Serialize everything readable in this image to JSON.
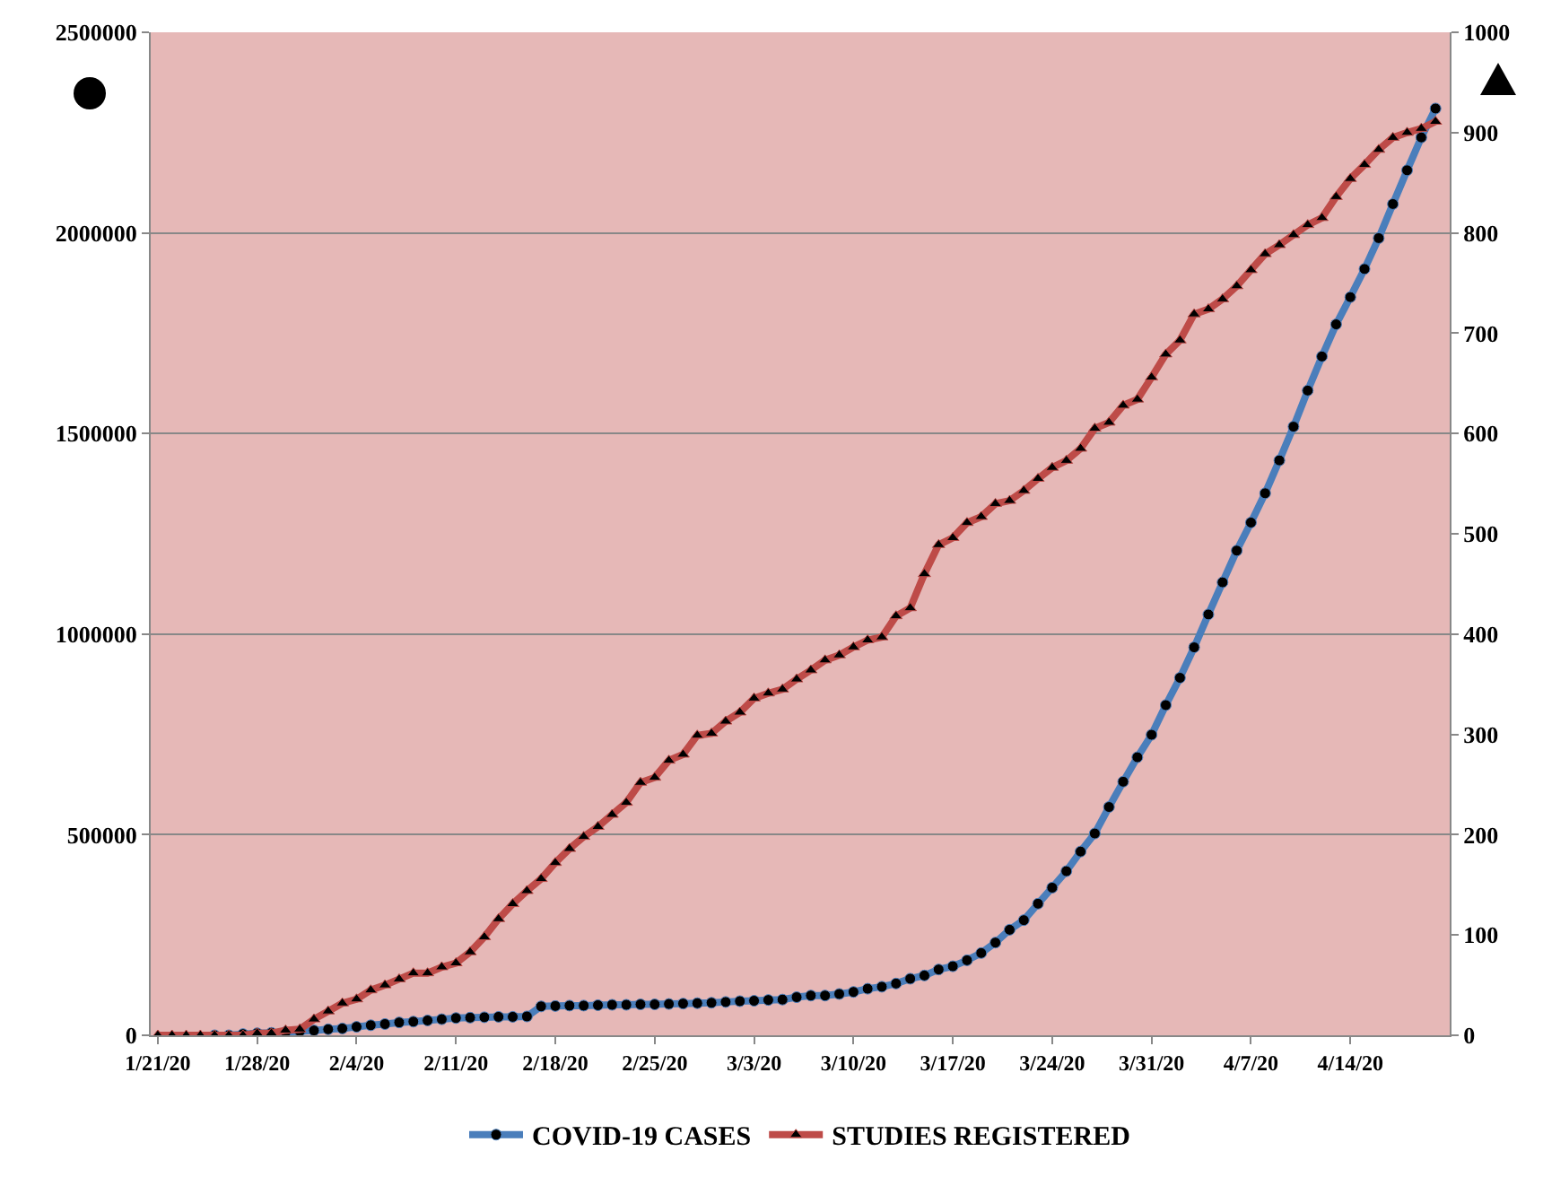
{
  "chart_data": {
    "type": "line",
    "categories": [
      "1/21/20",
      null,
      null,
      null,
      null,
      null,
      null,
      "1/28/20",
      null,
      null,
      null,
      null,
      null,
      null,
      "2/4/20",
      null,
      null,
      null,
      null,
      null,
      null,
      "2/11/20",
      null,
      null,
      null,
      null,
      null,
      null,
      "2/18/20",
      null,
      null,
      null,
      null,
      null,
      null,
      "2/25/20",
      null,
      null,
      null,
      null,
      null,
      null,
      "3/3/20",
      null,
      null,
      null,
      null,
      null,
      null,
      "3/10/20",
      null,
      null,
      null,
      null,
      null,
      null,
      "3/17/20",
      null,
      null,
      null,
      null,
      null,
      null,
      "3/24/20",
      null,
      null,
      null,
      null,
      null,
      null,
      "3/31/20",
      null,
      null,
      null,
      null,
      null,
      null,
      "4/7/20",
      null,
      null,
      null,
      null,
      null,
      null,
      "4/14/20",
      null,
      null,
      null,
      null,
      null,
      null
    ],
    "series": [
      {
        "name": "COVID-19 CASES",
        "color": "#4a7ebb",
        "marker": "circle",
        "values": [
          null,
          null,
          null,
          null,
          0,
          0,
          3000,
          5000,
          6000,
          8000,
          10000,
          12000,
          15000,
          17000,
          21000,
          25000,
          28000,
          32000,
          34000,
          37000,
          40000,
          43000,
          44000,
          45000,
          46000,
          46000,
          47000,
          72000,
          73000,
          74000,
          74000,
          75000,
          76000,
          76000,
          77000,
          77000,
          78000,
          79000,
          80000,
          81000,
          83000,
          85000,
          86000,
          88000,
          89000,
          95000,
          99000,
          99000,
          103000,
          108000,
          116000,
          121000,
          129000,
          141000,
          149000,
          164000,
          172000,
          187000,
          205000,
          231000,
          263000,
          287000,
          328000,
          368000,
          409000,
          458000,
          503000,
          569000,
          632000,
          693000,
          749000,
          823000,
          891000,
          967000,
          1049000,
          1129000,
          1208000,
          1278000,
          1351000,
          1433000,
          1517000,
          1607000,
          1692000,
          1772000,
          1840000,
          1910000,
          1987000,
          2072000,
          2156000,
          2238000,
          2310000
        ]
      },
      {
        "name": "STUDIES REGISTERED",
        "color": "#be4b48",
        "marker": "triangle",
        "axis": "y2",
        "values": [
          0,
          0,
          0,
          0,
          0,
          0,
          0,
          2,
          2,
          5,
          6,
          16,
          24,
          32,
          36,
          45,
          50,
          56,
          62,
          62,
          68,
          72,
          83,
          98,
          116,
          131,
          144,
          156,
          172,
          186,
          198,
          208,
          220,
          232,
          252,
          257,
          274,
          280,
          299,
          301,
          313,
          322,
          336,
          341,
          345,
          355,
          364,
          374,
          379,
          387,
          394,
          397,
          418,
          426,
          460,
          489,
          496,
          511,
          517,
          530,
          533,
          543,
          555,
          566,
          573,
          585,
          605,
          611,
          628,
          634,
          656,
          679,
          693,
          719,
          724,
          734,
          747,
          763,
          779,
          788,
          798,
          808,
          815,
          836,
          854,
          868,
          883,
          895,
          900,
          904,
          911
        ]
      }
    ],
    "ylim": [
      0,
      2500000
    ],
    "yticks": [
      0,
      500000,
      1000000,
      1500000,
      2000000,
      2500000
    ],
    "y2lim": [
      0,
      1000
    ],
    "y2ticks": [
      0,
      100,
      200,
      300,
      400,
      500,
      600,
      700,
      800,
      900,
      1000
    ],
    "grid": "y",
    "legend": "bottom",
    "line_style": "solid"
  }
}
